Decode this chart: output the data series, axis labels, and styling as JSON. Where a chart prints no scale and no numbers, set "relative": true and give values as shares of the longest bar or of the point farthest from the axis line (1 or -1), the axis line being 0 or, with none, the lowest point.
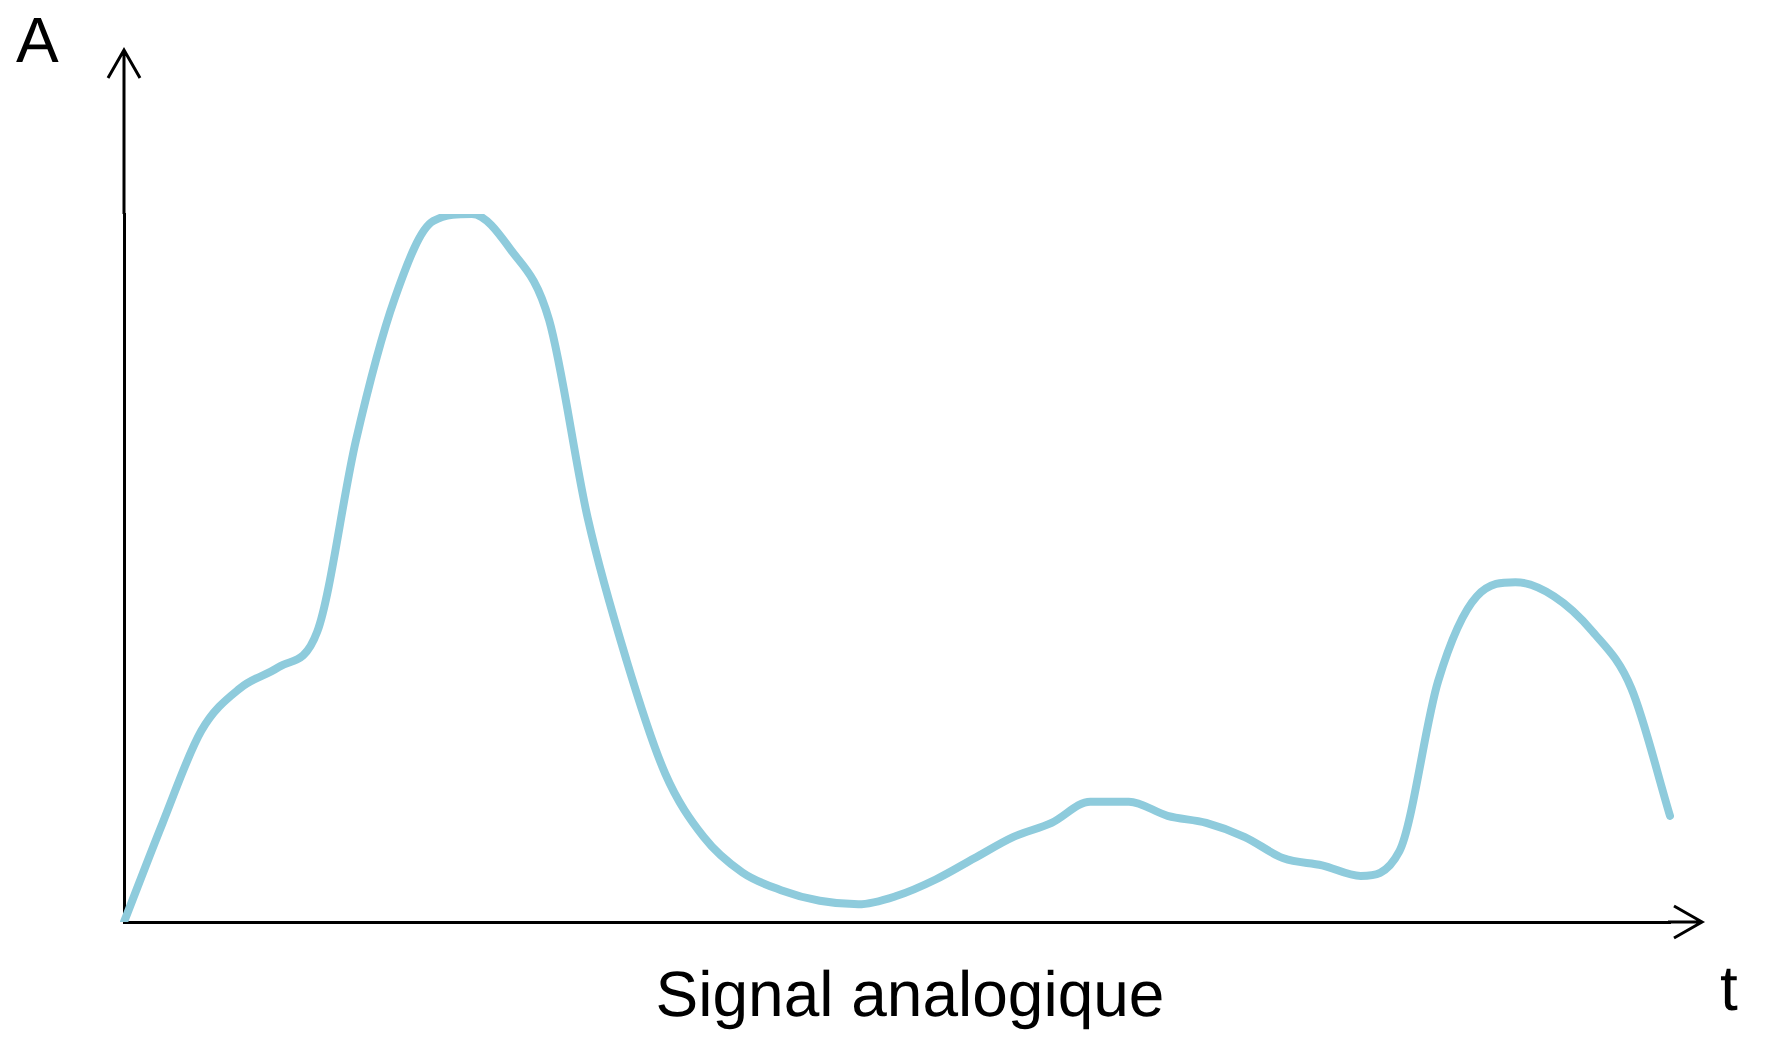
{
  "chart_data": {
    "type": "line",
    "relative": true,
    "ylabel": "A",
    "xlabel": "t",
    "annotations": [
      "Signal analogique"
    ],
    "categories": [
      null,
      null,
      null,
      null,
      null,
      null,
      null,
      null,
      null,
      null,
      null,
      null,
      null,
      null,
      null,
      null,
      null,
      null,
      null,
      null,
      null,
      null,
      null,
      null,
      null,
      null,
      null,
      null,
      null,
      null,
      null,
      null,
      null,
      null,
      null,
      null,
      null,
      null,
      null,
      null,
      null
    ],
    "series": [
      {
        "color": "#8ecbdc",
        "values": [
          0,
          0.14,
          0.27,
          0.33,
          0.36,
          0.41,
          0.68,
          0.88,
          0.99,
          1,
          0.95,
          0.85,
          0.57,
          0.37,
          0.21,
          0.12,
          0.07,
          0.045,
          0.03,
          0.025,
          0.037,
          0.06,
          0.09,
          0.12,
          0.14,
          0.17,
          0.17,
          0.15,
          0.14,
          0.12,
          0.09,
          0.08,
          0.065,
          0.1,
          0.34,
          0.46,
          0.48,
          0.46,
          0.41,
          0.33,
          0.15
        ]
      }
    ],
    "marker": "none"
  }
}
